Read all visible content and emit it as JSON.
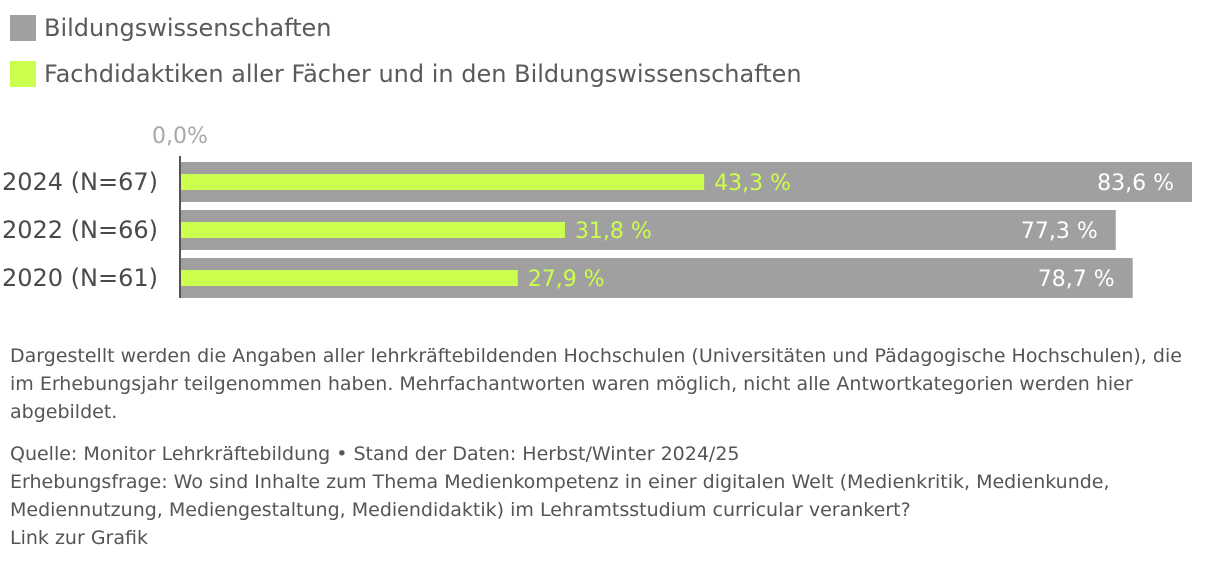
{
  "legend": [
    {
      "label": "Bildungswissenschaften",
      "color": "#a0a0a0"
    },
    {
      "label": "Fachdidaktiken aller Fächer und in den Bildungswissenschaften",
      "color": "#ccff4d"
    }
  ],
  "chart_data": {
    "type": "bar",
    "orientation": "horizontal",
    "axis_start_label": "0,0%",
    "categories": [
      "2024 (N=67)",
      "2022 (N=66)",
      "2020 (N=61)"
    ],
    "series": [
      {
        "name": "Bildungswissenschaften",
        "values": [
          83.6,
          77.3,
          78.7
        ],
        "labels": [
          "83,6 %",
          "77,3 %",
          "78,7 %"
        ],
        "color": "#a0a0a0"
      },
      {
        "name": "Fachdidaktiken aller Fächer und in den Bildungswissenschaften",
        "values": [
          43.3,
          31.8,
          27.9
        ],
        "labels": [
          "43,3 %",
          "31,8 %",
          "27,9 %"
        ],
        "color": "#ccff4d"
      }
    ],
    "xlim": [
      0,
      90
    ],
    "grid": false,
    "legend_position": "top-left"
  },
  "notes": {
    "description": "Dargestellt werden die Angaben aller lehrkräftebildenden Hochschulen (Universitäten und Pädagogische Hochschulen), die im Erhebungsjahr teilgenommen haben. Mehrfachantworten waren möglich, nicht alle Antwortkategorien werden hier abgebildet.",
    "source": "Quelle: Monitor Lehrkräftebildung • Stand der Daten: Herbst/Winter 2024/25",
    "question": "Erhebungsfrage: Wo sind Inhalte zum Thema Medienkompetenz in einer digitalen Welt (Medienkritik, Medienkunde, Mediennutzung, Mediengestaltung, Mediendidaktik) im Lehramtsstudium curricular verankert?",
    "link": "Link zur Grafik"
  }
}
